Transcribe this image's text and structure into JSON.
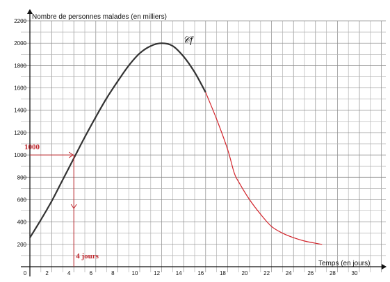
{
  "chart_data": {
    "type": "line",
    "title": "",
    "ylabel": "Nombre de personnes malades (en milliers)",
    "xlabel": "Temps (en jours)",
    "xlim": [
      0,
      31
    ],
    "ylim": [
      0,
      2200
    ],
    "x_ticks": [
      0,
      2,
      4,
      6,
      8,
      10,
      12,
      14,
      16,
      18,
      20,
      22,
      24,
      26,
      28,
      30
    ],
    "y_ticks": [
      200,
      400,
      600,
      800,
      1000,
      1200,
      1400,
      1600,
      1800,
      2000,
      2200
    ],
    "grid": true,
    "curve_label": "𝒞f",
    "series": [
      {
        "color": "#333333",
        "x": [
          0,
          1,
          2,
          3,
          4,
          5,
          6,
          7,
          8,
          9,
          10,
          11,
          12,
          13,
          14,
          15,
          16
        ],
        "y": [
          260,
          420,
          590,
          780,
          970,
          1160,
          1340,
          1510,
          1660,
          1800,
          1910,
          1975,
          2000,
          1975,
          1880,
          1740,
          1560
        ]
      },
      {
        "color": "#d2232a",
        "x": [
          16,
          17,
          18,
          18.6,
          19,
          20,
          21,
          22,
          23,
          24,
          25,
          26,
          26.6
        ],
        "y": [
          1560,
          1320,
          1050,
          840,
          760,
          600,
          470,
          360,
          300,
          260,
          230,
          210,
          200
        ]
      }
    ],
    "annotations": [
      {
        "text": "1000",
        "x": 4,
        "y": 1000,
        "axis": "y"
      },
      {
        "text": "4 jours",
        "x": 4,
        "y": 1000,
        "axis": "x"
      }
    ]
  }
}
